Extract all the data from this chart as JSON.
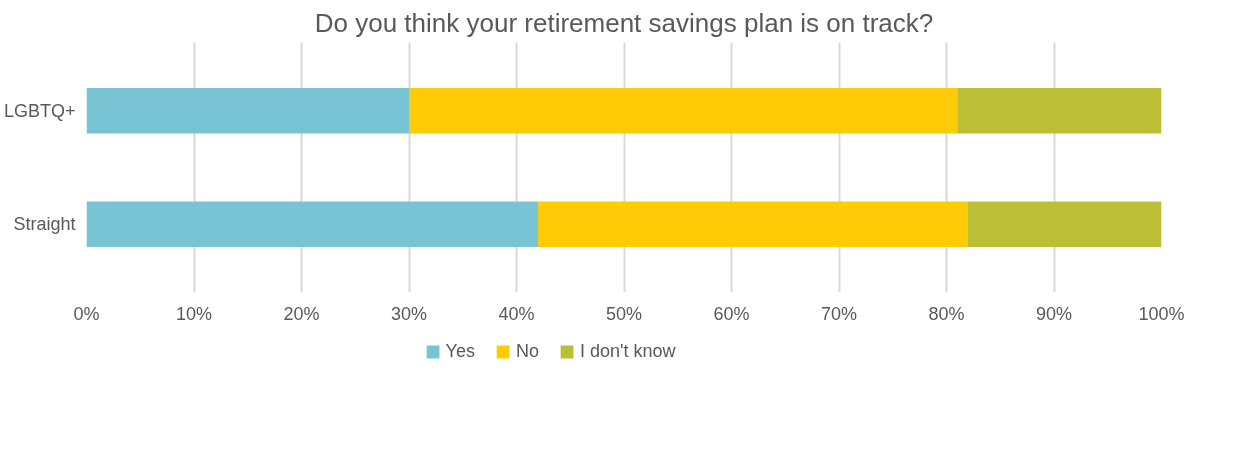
{
  "chart_data": {
    "type": "bar",
    "title": "Do you think your retirement savings plan is on track?",
    "orientation": "horizontal",
    "stacked": true,
    "categories": [
      "LGBTQ+",
      "Straight"
    ],
    "series": [
      {
        "name": "Yes",
        "color": "#78c4d4",
        "values": [
          30,
          42
        ]
      },
      {
        "name": "No",
        "color": "#fecc06",
        "values": [
          51,
          40
        ]
      },
      {
        "name": "I don't know",
        "color": "#bbbf35",
        "values": [
          19,
          18
        ]
      }
    ],
    "xlim": [
      0,
      100
    ],
    "xticks": [
      {
        "value": 0,
        "label": "0%"
      },
      {
        "value": 10,
        "label": "10%"
      },
      {
        "value": 20,
        "label": "20%"
      },
      {
        "value": 30,
        "label": "30%"
      },
      {
        "value": 40,
        "label": "40%"
      },
      {
        "value": 50,
        "label": "50%"
      },
      {
        "value": 60,
        "label": "60%"
      },
      {
        "value": 70,
        "label": "70%"
      },
      {
        "value": 80,
        "label": "80%"
      },
      {
        "value": 90,
        "label": "90%"
      },
      {
        "value": 100,
        "label": "100%"
      }
    ],
    "grid": "x",
    "legend": "bottom"
  }
}
